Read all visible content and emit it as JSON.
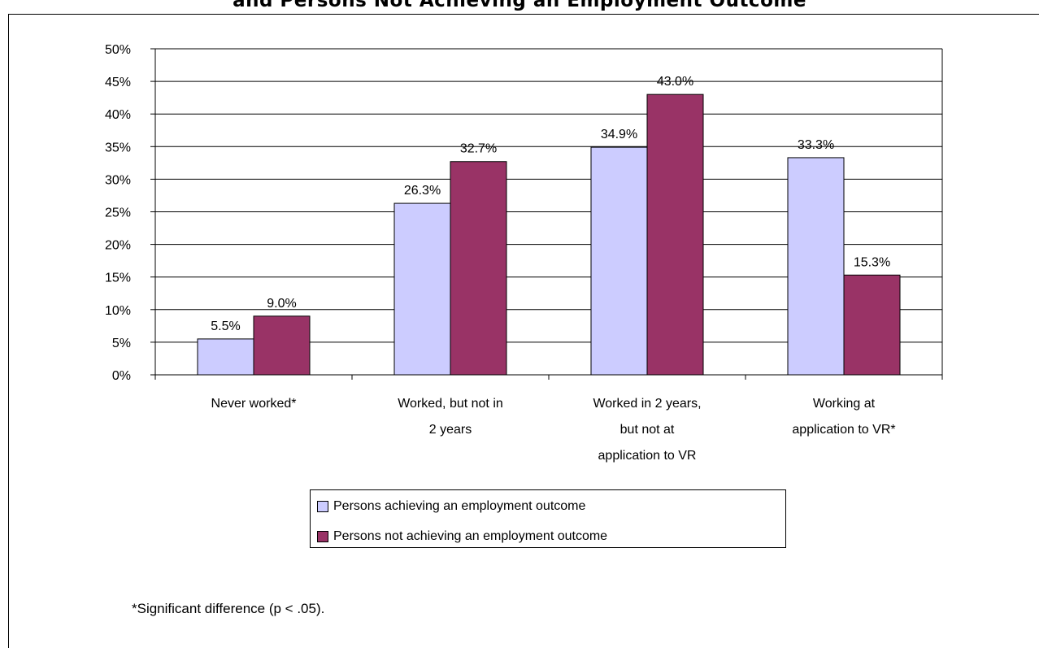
{
  "title_fragment": "and Persons Not Achieving an Employment Outcome",
  "footnote": "*Significant difference (p < .05).",
  "colors": {
    "series1": "#ccccff",
    "series2": "#993366",
    "gridline": "#000000"
  },
  "chart_data": {
    "type": "bar",
    "title": "and Persons Not Achieving an Employment Outcome",
    "xlabel": "",
    "ylabel": "",
    "ylim": [
      0,
      50
    ],
    "yticks": [
      "0%",
      "5%",
      "10%",
      "15%",
      "20%",
      "25%",
      "30%",
      "35%",
      "40%",
      "45%",
      "50%"
    ],
    "ytick_values": [
      0,
      5,
      10,
      15,
      20,
      25,
      30,
      35,
      40,
      45,
      50
    ],
    "grid": true,
    "legend_position": "bottom",
    "categories": [
      [
        "Never worked*"
      ],
      [
        "Worked, but not in",
        "2 years"
      ],
      [
        "Worked in 2 years,",
        "but not at",
        "application to VR"
      ],
      [
        "Working at",
        "application to VR*"
      ]
    ],
    "series": [
      {
        "name": "Persons achieving an employment outcome",
        "values": [
          5.5,
          26.3,
          34.9,
          33.3
        ],
        "labels": [
          "5.5%",
          "26.3%",
          "34.9%",
          "33.3%"
        ]
      },
      {
        "name": "Persons not achieving an employment outcome",
        "values": [
          9.0,
          32.7,
          43.0,
          15.3
        ],
        "labels": [
          "9.0%",
          "32.7%",
          "43.0%",
          "15.3%"
        ]
      }
    ]
  }
}
